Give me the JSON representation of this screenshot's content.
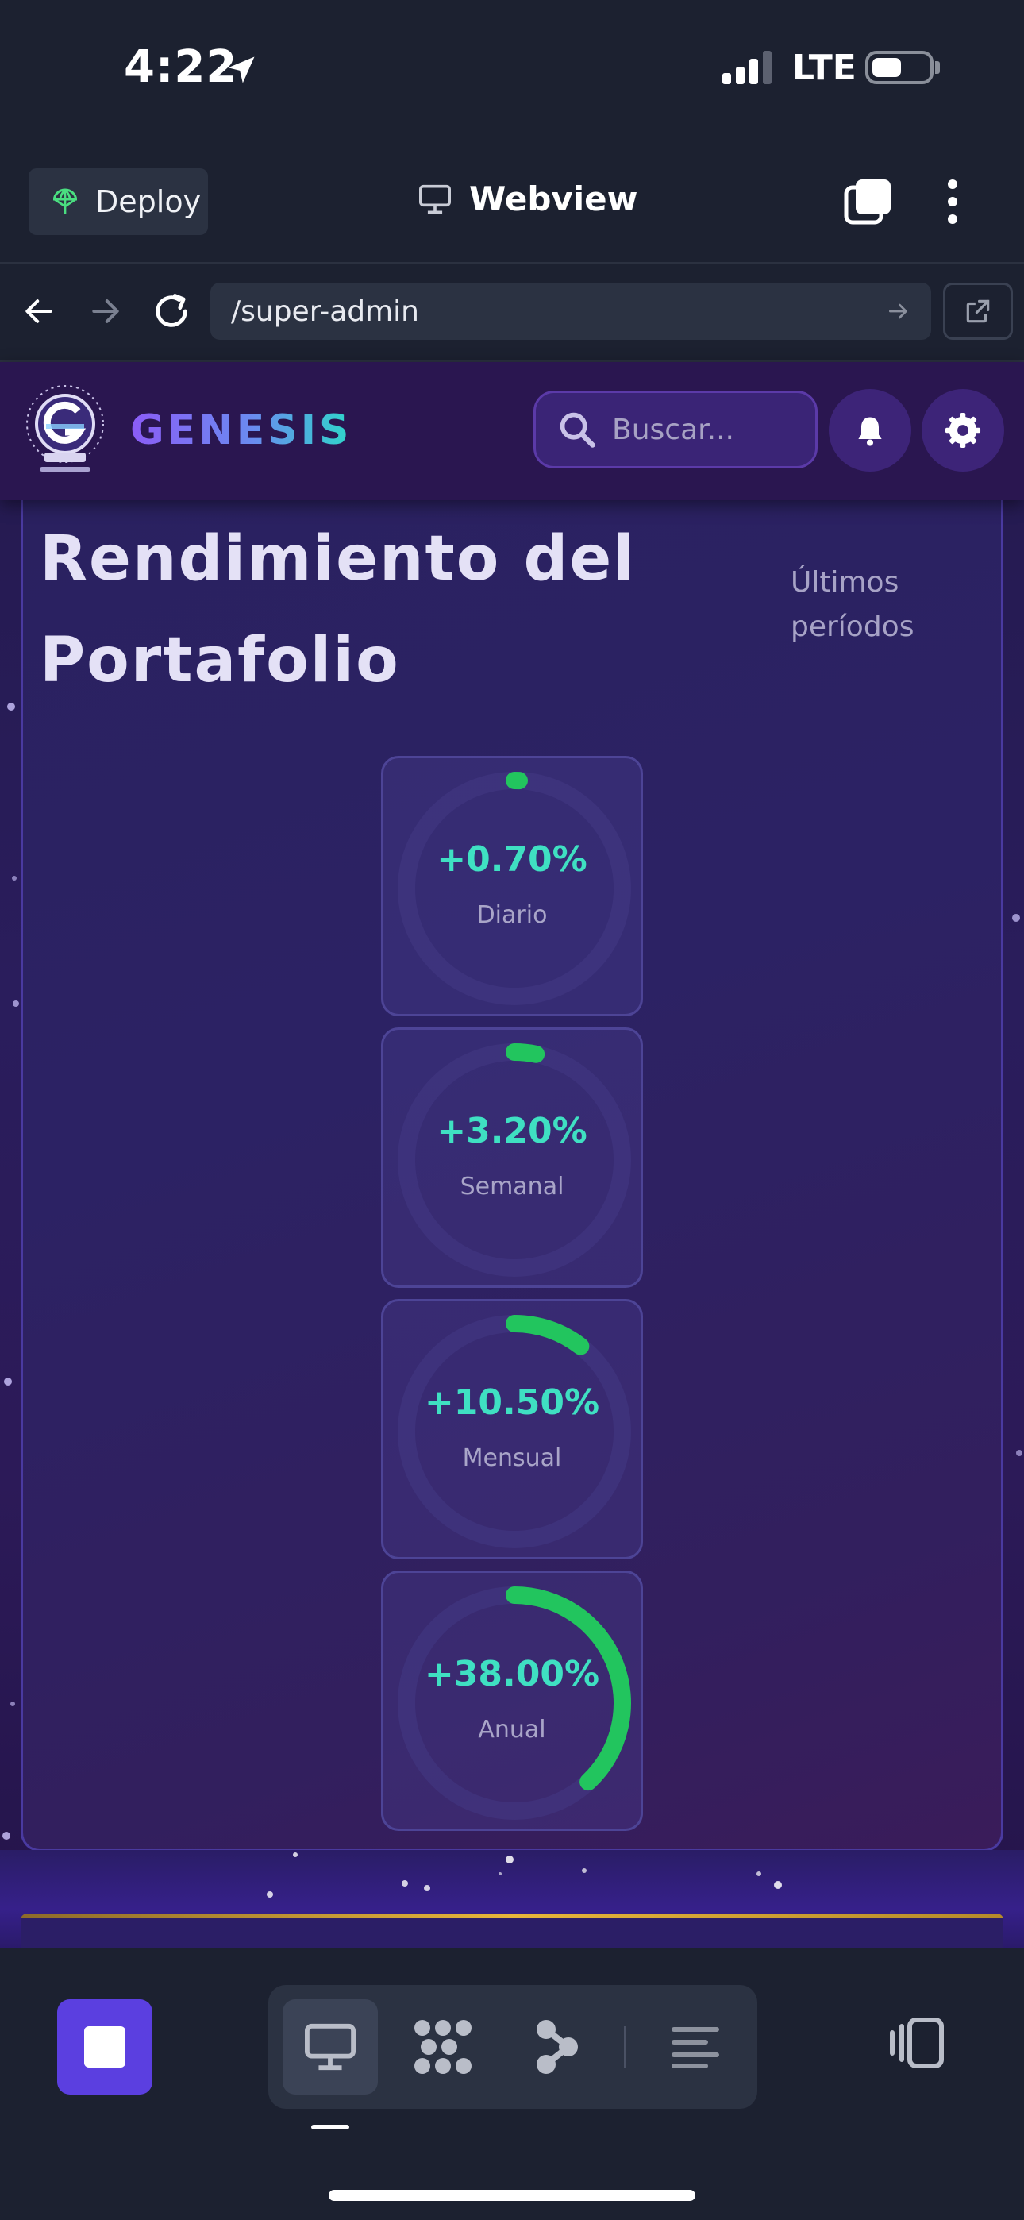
{
  "status_bar": {
    "time": "4:22",
    "network": "LTE"
  },
  "top_bar": {
    "deploy_label": "Deploy",
    "webview_label": "Webview"
  },
  "url_bar": {
    "path": "/super-admin"
  },
  "app_header": {
    "brand": "GENESIS",
    "search_placeholder": "Buscar..."
  },
  "portfolio_card": {
    "title": "Rendimiento del Portafolio",
    "subtitle": "Últimos períodos",
    "metrics": [
      {
        "value": "+0.70%",
        "label": "Diario",
        "progress": 0.007
      },
      {
        "value": "+3.20%",
        "label": "Semanal",
        "progress": 0.032
      },
      {
        "value": "+10.50%",
        "label": "Mensual",
        "progress": 0.105
      },
      {
        "value": "+38.00%",
        "label": "Anual",
        "progress": 0.38
      }
    ]
  },
  "colors": {
    "accent_green": "#22c55e",
    "value_teal": "#3fe0c2",
    "stop_button": "#5b3fe0"
  },
  "bottom_bar": {
    "tools": [
      "monitor-icon",
      "grid-dots-icon",
      "workflow-icon",
      "lines-icon"
    ]
  }
}
